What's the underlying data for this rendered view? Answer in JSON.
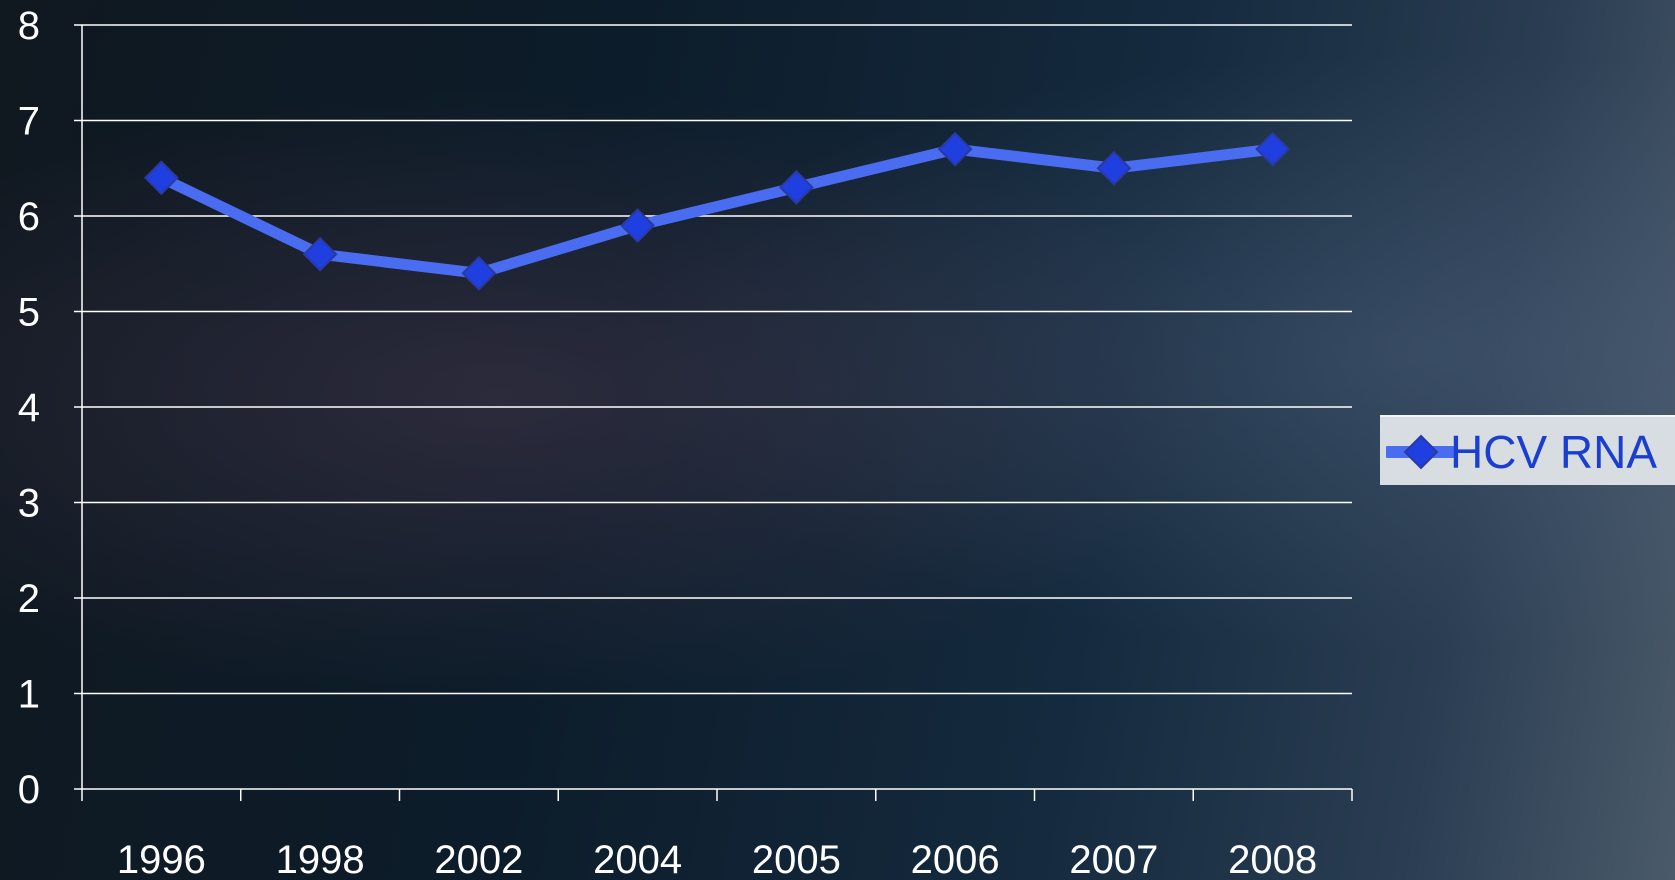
{
  "chart_data": {
    "type": "line",
    "categories": [
      "1996",
      "1998",
      "2002",
      "2004",
      "2005",
      "2006",
      "2007",
      "2008"
    ],
    "series": [
      {
        "name": "HCV RNA",
        "values": [
          6.4,
          5.6,
          5.4,
          5.9,
          6.3,
          6.7,
          6.5,
          6.7
        ]
      }
    ],
    "ylim": [
      0,
      8
    ],
    "yticks": [
      "0",
      "1",
      "2",
      "3",
      "4",
      "5",
      "6",
      "7",
      "8"
    ],
    "grid": true,
    "legend_position": "right",
    "colors": {
      "line": "#4a6cf0",
      "marker": "#1f3fe0",
      "grid": "#ffffff",
      "text": "#ffffff",
      "legend_bg": "#d8dde2",
      "legend_text": "#1a3fd0"
    }
  }
}
